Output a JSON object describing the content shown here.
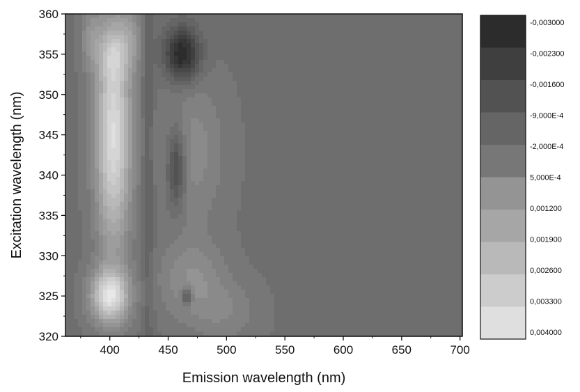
{
  "chart_data": {
    "type": "heatmap",
    "title": "",
    "xlabel": "Emission wavelength (nm)",
    "ylabel": "Excitation wavelength (nm)",
    "xlim": [
      362,
      702
    ],
    "ylim": [
      320,
      360
    ],
    "x_ticks": [
      "400",
      "450",
      "500",
      "550",
      "600",
      "650",
      "700"
    ],
    "y_ticks": [
      "320",
      "325",
      "330",
      "335",
      "340",
      "345",
      "350",
      "355",
      "360"
    ],
    "grid": false,
    "legend": "right",
    "colorbar": {
      "labels": [
        "-0,003000",
        "-0,002300",
        "-0,001600",
        "-9,000E-4",
        "-2,000E-4",
        "5,000E-4",
        "0,001200",
        "0,001900",
        "0,002600",
        "0,003300",
        "0,004000"
      ],
      "values": [
        -0.003,
        -0.0023,
        -0.0016,
        -0.0009,
        -0.0002,
        0.0005,
        0.0012,
        0.0019,
        0.0026,
        0.0033,
        0.004
      ],
      "color_low": "#1e1e1e",
      "color_high": "#ededed"
    },
    "background_level": -0.0002,
    "features": [
      {
        "name": "peak",
        "x": 403,
        "y": 345,
        "sx": 15,
        "sy": 14,
        "amp": 0.0036
      },
      {
        "name": "peak",
        "x": 403,
        "y": 355,
        "sx": 12,
        "sy": 3,
        "amp": 0.0012
      },
      {
        "name": "peak",
        "x": 400,
        "y": 325,
        "sx": 16,
        "sy": 3.2,
        "amp": 0.0036
      },
      {
        "name": "peak",
        "x": 384,
        "y": 357,
        "sx": 9,
        "sy": 4,
        "amp": 0.001
      },
      {
        "name": "peak",
        "x": 418,
        "y": 357,
        "sx": 9,
        "sy": 4,
        "amp": 0.001
      },
      {
        "name": "valley",
        "x": 462,
        "y": 355,
        "sx": 15,
        "sy": 3.2,
        "amp": -0.0026
      },
      {
        "name": "valley",
        "x": 457,
        "y": 341,
        "sx": 8,
        "sy": 5,
        "amp": -0.0018
      },
      {
        "name": "valley",
        "x": 466,
        "y": 325,
        "sx": 4,
        "sy": 1.1,
        "amp": -0.0018
      },
      {
        "name": "shoulder",
        "x": 470,
        "y": 343,
        "sx": 28,
        "sy": 9,
        "amp": 0.0009
      },
      {
        "name": "shoulder",
        "x": 470,
        "y": 327,
        "sx": 28,
        "sy": 5,
        "amp": 0.001
      },
      {
        "name": "valley",
        "x": 433,
        "y": 340,
        "sx": 5,
        "sy": 30,
        "amp": -0.0006
      },
      {
        "name": "shoulder",
        "x": 500,
        "y": 323,
        "sx": 28,
        "sy": 4,
        "amp": 0.0006
      }
    ]
  }
}
